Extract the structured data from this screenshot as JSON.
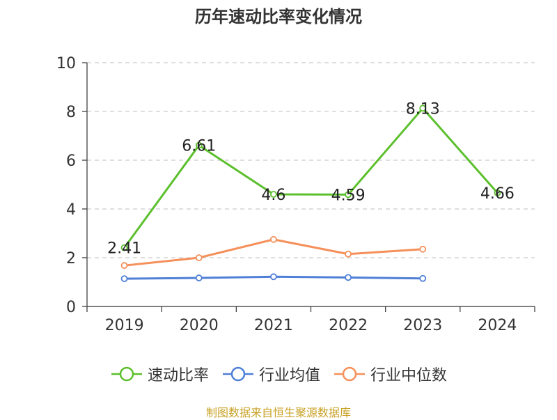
{
  "title": "历年速动比率变化情况",
  "source": "制图数据来自恒生聚源数据库",
  "chart_data": {
    "type": "line",
    "title": "历年速动比率变化情况",
    "xlabel": "",
    "ylabel": "",
    "categories": [
      "2019",
      "2020",
      "2021",
      "2022",
      "2023",
      "2024"
    ],
    "ylim": [
      0,
      10
    ],
    "yticks": [
      0,
      2,
      4,
      6,
      8,
      10
    ],
    "grid": "horizontal-dashed",
    "legend_position": "bottom",
    "series": [
      {
        "name": "速动比率",
        "color": "#5cc02d",
        "values": [
          2.41,
          6.61,
          4.6,
          4.59,
          8.13,
          4.66
        ],
        "labels": [
          "2.41",
          "6.61",
          "4.6",
          "4.59",
          "8.13",
          "4.66"
        ]
      },
      {
        "name": "行业均值",
        "color": "#4f7fd6",
        "values": [
          1.14,
          1.17,
          1.22,
          1.19,
          1.15,
          null
        ]
      },
      {
        "name": "行业中位数",
        "color": "#f5905a",
        "values": [
          1.68,
          2.0,
          2.75,
          2.15,
          2.35,
          null
        ]
      }
    ]
  }
}
